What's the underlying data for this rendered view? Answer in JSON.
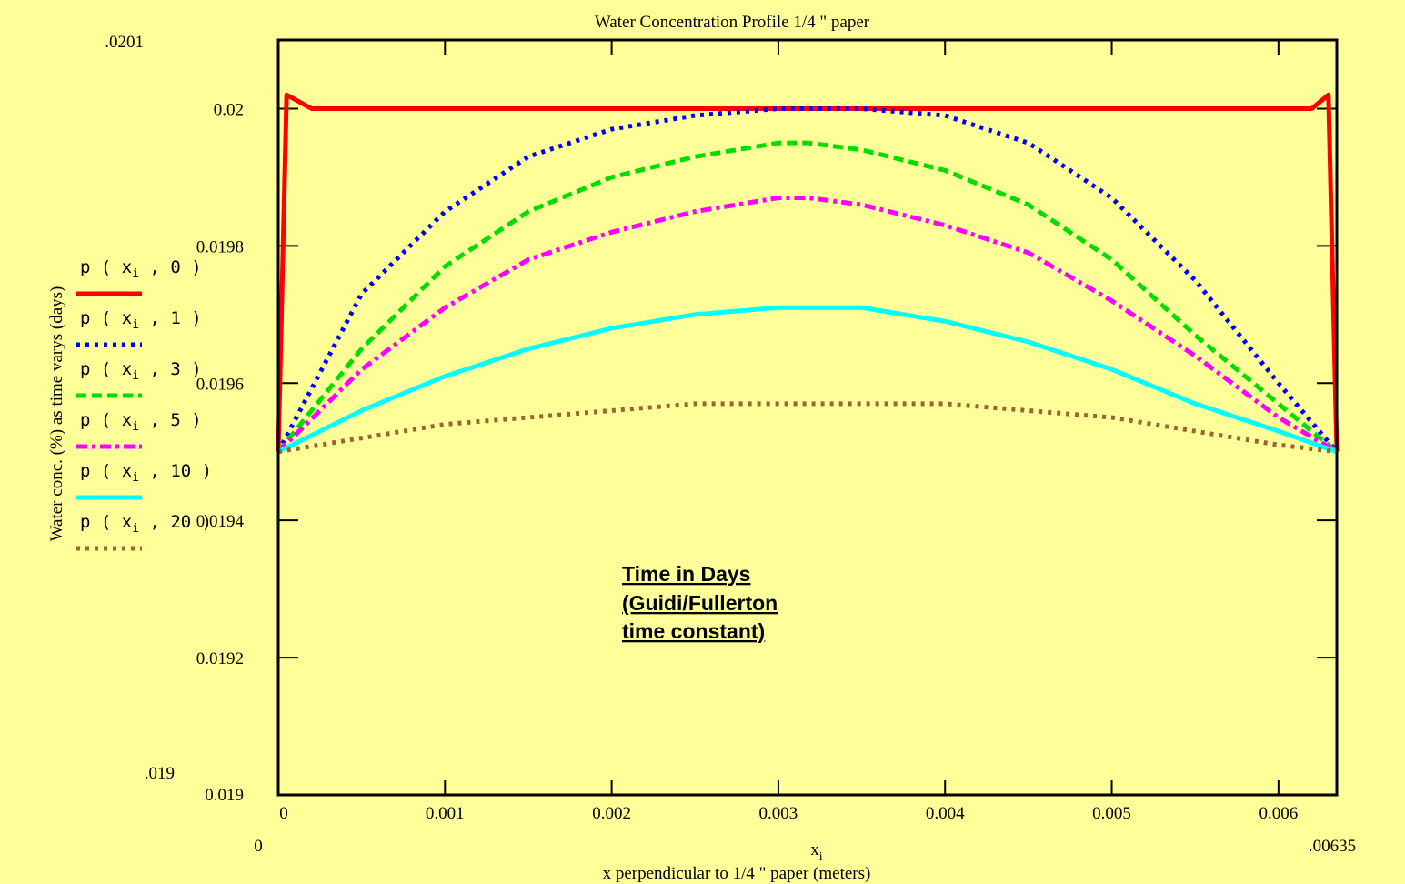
{
  "chart_data": {
    "type": "line",
    "title": "Water Concentration Profile 1/4 \" paper",
    "xlabel_var": "x",
    "xlabel_sub": "i",
    "xlabel": "x perpendicular to 1/4 \" paper (meters)",
    "ylabel": "Water conc.  (%) as time varys (days)",
    "xlim": [
      0,
      0.00635
    ],
    "ylim": [
      0.019,
      0.0201
    ],
    "xlim_labels": [
      "0",
      ".00635"
    ],
    "ylim_labels": [
      ".019",
      ".0201"
    ],
    "x_ticks": [
      0,
      0.001,
      0.002,
      0.003,
      0.004,
      0.005,
      0.006
    ],
    "x_tick_labels": [
      "0",
      "0.001",
      "0.002",
      "0.003",
      "0.004",
      "0.005",
      "0.006"
    ],
    "y_ticks": [
      0.019,
      0.0192,
      0.0194,
      0.0196,
      0.0198,
      0.02
    ],
    "y_tick_labels": [
      "0.019",
      "0.0192",
      "0.0194",
      "0.0196",
      "0.0198",
      "0.02"
    ],
    "annotation": [
      "Time in Days",
      "(Guidi/Fullerton",
      "time constant)"
    ],
    "boundary_value": 0.0195,
    "series": [
      {
        "name": "p(x_i, 0)",
        "func": "p",
        "var": "x",
        "sub": "i",
        "t": "0",
        "color": "#ff0000",
        "style": "solid",
        "x": [
          0,
          5e-05,
          0.0002,
          0.0004,
          0.001,
          0.002,
          0.003,
          0.004,
          0.005,
          0.006,
          0.0062,
          0.0063,
          0.00635
        ],
        "values": [
          0.0195,
          0.02002,
          0.02,
          0.02,
          0.02,
          0.02,
          0.02,
          0.02,
          0.02,
          0.02,
          0.02,
          0.02002,
          0.0195
        ]
      },
      {
        "name": "p(x_i, 1)",
        "func": "p",
        "var": "x",
        "sub": "i",
        "t": "1",
        "color": "#0000ff",
        "style": "dotted",
        "x": [
          0,
          0.0005,
          0.001,
          0.0015,
          0.002,
          0.0025,
          0.003,
          0.00318,
          0.0035,
          0.004,
          0.0045,
          0.005,
          0.0055,
          0.006,
          0.00635
        ],
        "values": [
          0.0195,
          0.01973,
          0.01985,
          0.01993,
          0.01997,
          0.01999,
          0.02,
          0.02,
          0.02,
          0.01999,
          0.01995,
          0.01987,
          0.01975,
          0.0196,
          0.0195
        ]
      },
      {
        "name": "p(x_i, 3)",
        "func": "p",
        "var": "x",
        "sub": "i",
        "t": "3",
        "color": "#00dd00",
        "style": "dashed",
        "x": [
          0,
          0.0005,
          0.001,
          0.0015,
          0.002,
          0.0025,
          0.003,
          0.00318,
          0.0035,
          0.004,
          0.0045,
          0.005,
          0.0055,
          0.006,
          0.00635
        ],
        "values": [
          0.0195,
          0.01965,
          0.01977,
          0.01985,
          0.0199,
          0.01993,
          0.01995,
          0.01995,
          0.01994,
          0.01991,
          0.01986,
          0.01978,
          0.01967,
          0.01957,
          0.0195
        ]
      },
      {
        "name": "p(x_i, 5)",
        "func": "p",
        "var": "x",
        "sub": "i",
        "t": "5",
        "color": "#ff00ff",
        "style": "dashdot",
        "x": [
          0,
          0.0005,
          0.001,
          0.0015,
          0.002,
          0.0025,
          0.003,
          0.00318,
          0.0035,
          0.004,
          0.0045,
          0.005,
          0.0055,
          0.006,
          0.00635
        ],
        "values": [
          0.0195,
          0.01962,
          0.01971,
          0.01978,
          0.01982,
          0.01985,
          0.01987,
          0.01987,
          0.01986,
          0.01983,
          0.01979,
          0.01972,
          0.01964,
          0.01955,
          0.0195
        ]
      },
      {
        "name": "p(x_i, 10)",
        "func": "p",
        "var": "x",
        "sub": "i",
        "t": "10",
        "color": "#00ffff",
        "style": "solid",
        "x": [
          0,
          0.0005,
          0.001,
          0.0015,
          0.002,
          0.0025,
          0.003,
          0.00318,
          0.0035,
          0.004,
          0.0045,
          0.005,
          0.0055,
          0.006,
          0.00635
        ],
        "values": [
          0.0195,
          0.01956,
          0.01961,
          0.01965,
          0.01968,
          0.0197,
          0.01971,
          0.01971,
          0.01971,
          0.01969,
          0.01966,
          0.01962,
          0.01957,
          0.01953,
          0.0195
        ]
      },
      {
        "name": "p(x_i, 20)",
        "func": "p",
        "var": "x",
        "sub": "i",
        "t": "20",
        "color": "#996633",
        "style": "dotted",
        "x": [
          0,
          0.0005,
          0.001,
          0.0015,
          0.002,
          0.0025,
          0.003,
          0.00318,
          0.0035,
          0.004,
          0.0045,
          0.005,
          0.0055,
          0.006,
          0.00635
        ],
        "values": [
          0.0195,
          0.01952,
          0.01954,
          0.01955,
          0.01956,
          0.01957,
          0.01957,
          0.01957,
          0.01957,
          0.01957,
          0.01956,
          0.01955,
          0.01953,
          0.01951,
          0.0195
        ]
      }
    ]
  }
}
